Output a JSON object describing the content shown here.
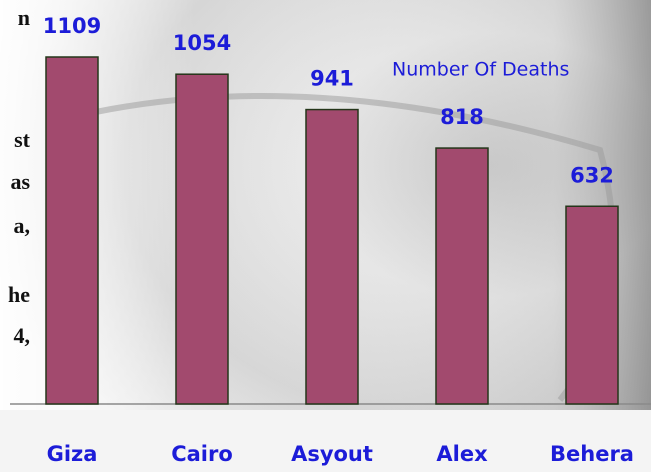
{
  "chart_data": {
    "type": "bar",
    "annotations": [
      "n",
      "st",
      "as",
      "a,",
      "he",
      "4,"
    ],
    "categories": [
      "Giza",
      "Cairo",
      "Asyout",
      "Alex",
      "Behera"
    ],
    "series": [
      {
        "name": "Number Of Deaths",
        "color": "#a24a6e",
        "values": [
          1109,
          1054,
          941,
          818,
          632
        ]
      }
    ]
  }
}
